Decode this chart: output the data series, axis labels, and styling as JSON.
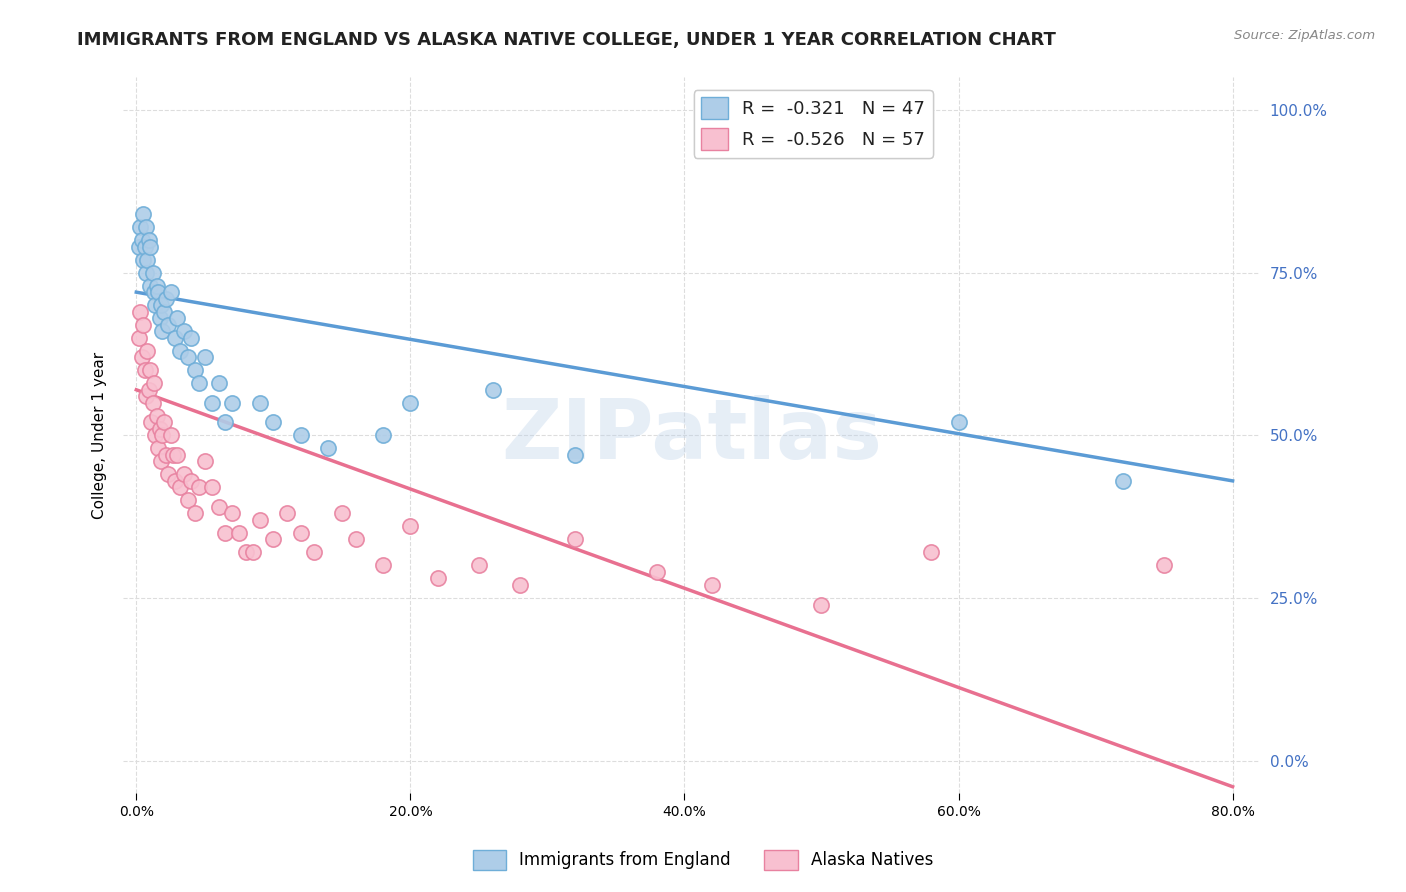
{
  "title": "IMMIGRANTS FROM ENGLAND VS ALASKA NATIVE COLLEGE, UNDER 1 YEAR CORRELATION CHART",
  "source": "Source: ZipAtlas.com",
  "ylabel": "College, Under 1 year",
  "xlabel_ticks": [
    "0.0%",
    "20.0%",
    "40.0%",
    "60.0%",
    "80.0%"
  ],
  "xlabel_vals": [
    0.0,
    0.2,
    0.4,
    0.6,
    0.8
  ],
  "ylabel_ticks": [
    "0.0%",
    "25.0%",
    "50.0%",
    "75.0%",
    "100.0%"
  ],
  "ylabel_vals": [
    0.0,
    0.25,
    0.5,
    0.75,
    1.0
  ],
  "xlim": [
    -0.01,
    0.82
  ],
  "ylim": [
    -0.05,
    1.05
  ],
  "blue_R": -0.321,
  "blue_N": 47,
  "pink_R": -0.526,
  "pink_N": 57,
  "blue_color": "#aecde8",
  "pink_color": "#f8c0d0",
  "blue_edge_color": "#6faed8",
  "pink_edge_color": "#e882a0",
  "blue_line_color": "#5b9bd5",
  "pink_line_color": "#e87090",
  "legend_label_blue": "Immigrants from England",
  "legend_label_pink": "Alaska Natives",
  "blue_scatter_x": [
    0.002,
    0.003,
    0.004,
    0.005,
    0.005,
    0.006,
    0.007,
    0.007,
    0.008,
    0.009,
    0.01,
    0.01,
    0.012,
    0.013,
    0.014,
    0.015,
    0.016,
    0.017,
    0.018,
    0.019,
    0.02,
    0.022,
    0.023,
    0.025,
    0.028,
    0.03,
    0.032,
    0.035,
    0.038,
    0.04,
    0.043,
    0.046,
    0.05,
    0.055,
    0.06,
    0.065,
    0.07,
    0.09,
    0.1,
    0.12,
    0.14,
    0.18,
    0.2,
    0.26,
    0.32,
    0.6,
    0.72
  ],
  "blue_scatter_y": [
    0.79,
    0.82,
    0.8,
    0.77,
    0.84,
    0.79,
    0.75,
    0.82,
    0.77,
    0.8,
    0.73,
    0.79,
    0.75,
    0.72,
    0.7,
    0.73,
    0.72,
    0.68,
    0.7,
    0.66,
    0.69,
    0.71,
    0.67,
    0.72,
    0.65,
    0.68,
    0.63,
    0.66,
    0.62,
    0.65,
    0.6,
    0.58,
    0.62,
    0.55,
    0.58,
    0.52,
    0.55,
    0.55,
    0.52,
    0.5,
    0.48,
    0.5,
    0.55,
    0.57,
    0.47,
    0.52,
    0.43
  ],
  "pink_scatter_x": [
    0.002,
    0.003,
    0.004,
    0.005,
    0.006,
    0.007,
    0.008,
    0.009,
    0.01,
    0.011,
    0.012,
    0.013,
    0.014,
    0.015,
    0.016,
    0.017,
    0.018,
    0.019,
    0.02,
    0.022,
    0.023,
    0.025,
    0.027,
    0.028,
    0.03,
    0.032,
    0.035,
    0.038,
    0.04,
    0.043,
    0.046,
    0.05,
    0.055,
    0.06,
    0.065,
    0.07,
    0.075,
    0.08,
    0.085,
    0.09,
    0.1,
    0.11,
    0.12,
    0.13,
    0.15,
    0.16,
    0.18,
    0.2,
    0.22,
    0.25,
    0.28,
    0.32,
    0.38,
    0.42,
    0.5,
    0.58,
    0.75
  ],
  "pink_scatter_y": [
    0.65,
    0.69,
    0.62,
    0.67,
    0.6,
    0.56,
    0.63,
    0.57,
    0.6,
    0.52,
    0.55,
    0.58,
    0.5,
    0.53,
    0.48,
    0.51,
    0.46,
    0.5,
    0.52,
    0.47,
    0.44,
    0.5,
    0.47,
    0.43,
    0.47,
    0.42,
    0.44,
    0.4,
    0.43,
    0.38,
    0.42,
    0.46,
    0.42,
    0.39,
    0.35,
    0.38,
    0.35,
    0.32,
    0.32,
    0.37,
    0.34,
    0.38,
    0.35,
    0.32,
    0.38,
    0.34,
    0.3,
    0.36,
    0.28,
    0.3,
    0.27,
    0.34,
    0.29,
    0.27,
    0.24,
    0.32,
    0.3
  ],
  "blue_trendline_x": [
    0.0,
    0.8
  ],
  "blue_trendline_y": [
    0.72,
    0.43
  ],
  "pink_trendline_x": [
    0.0,
    0.8
  ],
  "pink_trendline_y": [
    0.57,
    -0.04
  ],
  "background_color": "#ffffff",
  "grid_color": "#dddddd",
  "title_fontsize": 13,
  "axis_label_fontsize": 11,
  "tick_fontsize": 10,
  "right_tick_color": "#4472c4",
  "watermark_text": "ZIPatlas",
  "watermark_color": "#b8cfe8",
  "watermark_alpha": 0.35,
  "watermark_fontsize": 60
}
